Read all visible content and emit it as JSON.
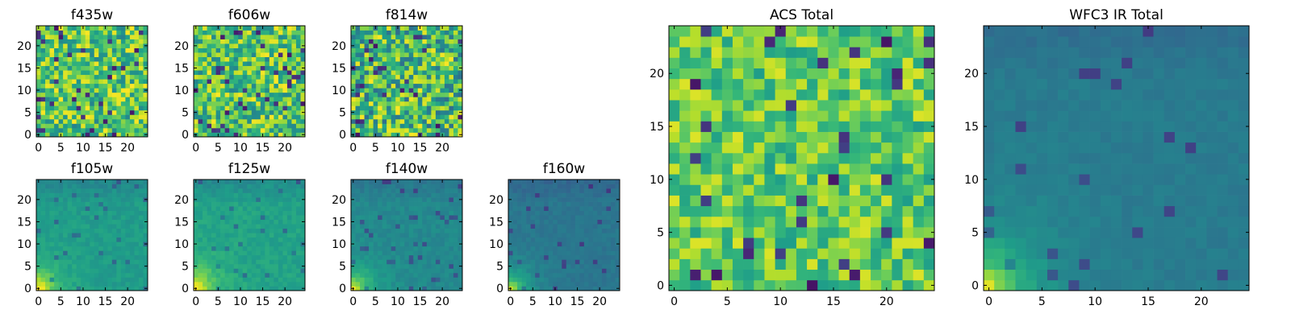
{
  "figure": {
    "background": "#ffffff",
    "colormap": "viridis"
  },
  "chart_data": [
    {
      "type": "heatmap",
      "title": "f435w",
      "grid_size": 25,
      "xlim": [
        -0.5,
        24.5
      ],
      "ylim": [
        -0.5,
        24.5
      ],
      "xticks": [
        0,
        5,
        10,
        15,
        20
      ],
      "yticks": [
        0,
        5,
        10,
        15,
        20
      ],
      "pattern": "noise",
      "value_range": [
        0.45,
        1.0
      ],
      "seed": 11,
      "grid": false
    },
    {
      "type": "heatmap",
      "title": "f606w",
      "grid_size": 25,
      "xlim": [
        -0.5,
        24.5
      ],
      "ylim": [
        -0.5,
        24.5
      ],
      "xticks": [
        0,
        5,
        10,
        15,
        20
      ],
      "yticks": [
        0,
        5,
        10,
        15,
        20
      ],
      "pattern": "noise",
      "value_range": [
        0.45,
        1.0
      ],
      "seed": 23,
      "grid": false
    },
    {
      "type": "heatmap",
      "title": "f814w",
      "grid_size": 25,
      "xlim": [
        -0.5,
        24.5
      ],
      "ylim": [
        -0.5,
        24.5
      ],
      "xticks": [
        0,
        5,
        10,
        15,
        20
      ],
      "yticks": [
        0,
        5,
        10,
        15,
        20
      ],
      "pattern": "noise",
      "value_range": [
        0.35,
        1.0
      ],
      "seed": 37,
      "grid": false
    },
    {
      "type": "heatmap",
      "title": "f105w",
      "grid_size": 25,
      "xlim": [
        -0.5,
        24.5
      ],
      "ylim": [
        -0.5,
        24.5
      ],
      "xticks": [
        0,
        5,
        10,
        15,
        20
      ],
      "yticks": [
        0,
        5,
        10,
        15,
        20
      ],
      "pattern": "corner",
      "value_range": [
        0.3,
        0.75
      ],
      "seed": 41,
      "grid": false
    },
    {
      "type": "heatmap",
      "title": "f125w",
      "grid_size": 25,
      "xlim": [
        -0.5,
        24.5
      ],
      "ylim": [
        -0.5,
        24.5
      ],
      "xticks": [
        0,
        5,
        10,
        15,
        20
      ],
      "yticks": [
        0,
        5,
        10,
        15,
        20
      ],
      "pattern": "corner",
      "value_range": [
        0.3,
        0.8
      ],
      "seed": 53,
      "grid": false
    },
    {
      "type": "heatmap",
      "title": "f140w",
      "grid_size": 25,
      "xlim": [
        -0.5,
        24.5
      ],
      "ylim": [
        -0.5,
        24.5
      ],
      "xticks": [
        0,
        5,
        10,
        15,
        20
      ],
      "yticks": [
        0,
        5,
        10,
        15,
        20
      ],
      "pattern": "corner",
      "value_range": [
        0.25,
        0.65
      ],
      "seed": 67,
      "grid": false
    },
    {
      "type": "heatmap",
      "title": "f160w",
      "grid_size": 25,
      "xlim": [
        -0.5,
        24.5
      ],
      "ylim": [
        -0.5,
        24.5
      ],
      "xticks": [
        0,
        5,
        10,
        15,
        20
      ],
      "yticks": [
        0,
        5,
        10,
        15,
        20
      ],
      "pattern": "corner",
      "value_range": [
        0.2,
        0.55
      ],
      "seed": 79,
      "grid": false
    },
    {
      "type": "heatmap",
      "title": "ACS Total",
      "grid_size": 25,
      "xlim": [
        -0.5,
        24.5
      ],
      "ylim": [
        -0.5,
        24.5
      ],
      "xticks": [
        0,
        5,
        10,
        15,
        20
      ],
      "yticks": [
        0,
        5,
        10,
        15,
        20
      ],
      "pattern": "noise",
      "value_range": [
        0.55,
        0.95
      ],
      "seed": 97,
      "grid": false
    },
    {
      "type": "heatmap",
      "title": "WFC3 IR Total",
      "grid_size": 25,
      "xlim": [
        -0.5,
        24.5
      ],
      "ylim": [
        -0.5,
        24.5
      ],
      "xticks": [
        0,
        5,
        10,
        15,
        20
      ],
      "yticks": [
        0,
        5,
        10,
        15,
        20
      ],
      "pattern": "corner",
      "value_range": [
        0.25,
        0.55
      ],
      "seed": 113,
      "grid": false
    }
  ]
}
